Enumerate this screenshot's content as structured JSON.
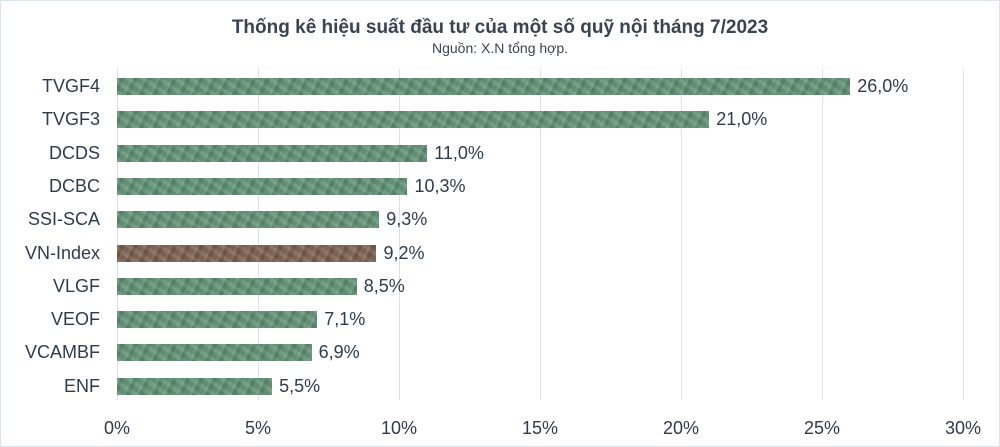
{
  "chart_data": {
    "type": "bar",
    "orientation": "horizontal",
    "title": "Thống kê hiệu suất đầu tư của một số quỹ nội tháng 7/2023",
    "subtitle": "Nguồn: X.N tổng hợp.",
    "xlabel": "",
    "ylabel": "",
    "xlim": [
      0,
      30
    ],
    "grid": true,
    "legend": null,
    "categories": [
      "TVGF4",
      "TVGF3",
      "DCDS",
      "DCBC",
      "SSI-SCA",
      "VN-Index",
      "VLGF",
      "VEOF",
      "VCAMBF",
      "ENF"
    ],
    "values": [
      26.0,
      21.0,
      11.0,
      10.3,
      9.3,
      9.2,
      8.5,
      7.1,
      6.9,
      5.5
    ],
    "value_labels": [
      "26,0%",
      "21,0%",
      "11,0%",
      "10,3%",
      "9,3%",
      "9,2%",
      "8,5%",
      "7,1%",
      "6,9%",
      "5,5%"
    ],
    "bar_colors": [
      "#5e8f72",
      "#5e8f72",
      "#5e8f72",
      "#5e8f72",
      "#5e8f72",
      "#7a5e4c",
      "#5e8f72",
      "#5e8f72",
      "#5e8f72",
      "#5e8f72"
    ],
    "x_ticks": [
      "0%",
      "5%",
      "10%",
      "15%",
      "20%",
      "25%",
      "30%"
    ],
    "x_tick_values": [
      0,
      5,
      10,
      15,
      20,
      25,
      30
    ]
  },
  "colors": {
    "fund_bar": "#5e8f72",
    "index_bar": "#7a5e4c",
    "text": "#2e3b4e",
    "gridline": "#dde1e6"
  }
}
